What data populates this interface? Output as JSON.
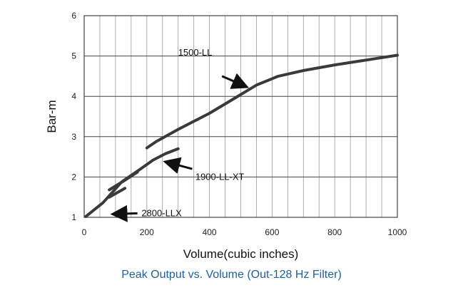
{
  "caption": "Peak Output vs. Volume (Out-128 Hz Filter)",
  "chart_data": {
    "type": "line",
    "title": "",
    "xlabel": "Volume(cubic inches)",
    "ylabel": "Bar-m",
    "xlim": [
      0,
      1000
    ],
    "ylim": [
      1,
      6
    ],
    "xticks": [
      0,
      200,
      400,
      600,
      800,
      1000
    ],
    "yticks": [
      1,
      2,
      3,
      4,
      5,
      6
    ],
    "minor_x_step": 50,
    "grid": {
      "vertical": true,
      "horizontal": true
    },
    "line_color": "#3a3a3a",
    "series": [
      {
        "name": "1500-LL",
        "segments": [
          [
            [
              80,
              1.68
            ],
            [
              130,
              1.92
            ],
            [
              170,
              2.12
            ]
          ],
          [
            [
              200,
              2.72
            ],
            [
              230,
              2.88
            ],
            [
              300,
              3.18
            ],
            [
              400,
              3.58
            ],
            [
              480,
              3.95
            ],
            [
              550,
              4.28
            ],
            [
              620,
              4.5
            ],
            [
              700,
              4.64
            ],
            [
              800,
              4.78
            ],
            [
              900,
              4.9
            ],
            [
              1000,
              5.02
            ]
          ]
        ]
      },
      {
        "name": "1900-LL-XT",
        "segments": [
          [
            [
              5,
              1.02
            ],
            [
              60,
              1.36
            ],
            [
              120,
              1.88
            ],
            [
              180,
              2.2
            ],
            [
              220,
              2.42
            ],
            [
              260,
              2.58
            ],
            [
              300,
              2.7
            ]
          ]
        ]
      },
      {
        "name": "2800-LLX",
        "segments": [
          [
            [
              80,
              1.5
            ],
            [
              130,
              1.72
            ]
          ]
        ]
      }
    ],
    "annotations": [
      {
        "text": "1500-LL",
        "text_at": [
          300,
          5.08
        ],
        "arrow_from": [
          440,
          4.5
        ],
        "arrow_to": [
          520,
          4.23
        ]
      },
      {
        "text": "1900-LL-XT",
        "text_at": [
          355,
          2.0
        ],
        "arrow_from": [
          345,
          2.2
        ],
        "arrow_to": [
          258,
          2.38
        ]
      },
      {
        "text": "2800-LLX",
        "text_at": [
          183,
          1.1
        ],
        "arrow_from": [
          170,
          1.1
        ],
        "arrow_to": [
          90,
          1.08
        ]
      }
    ]
  }
}
